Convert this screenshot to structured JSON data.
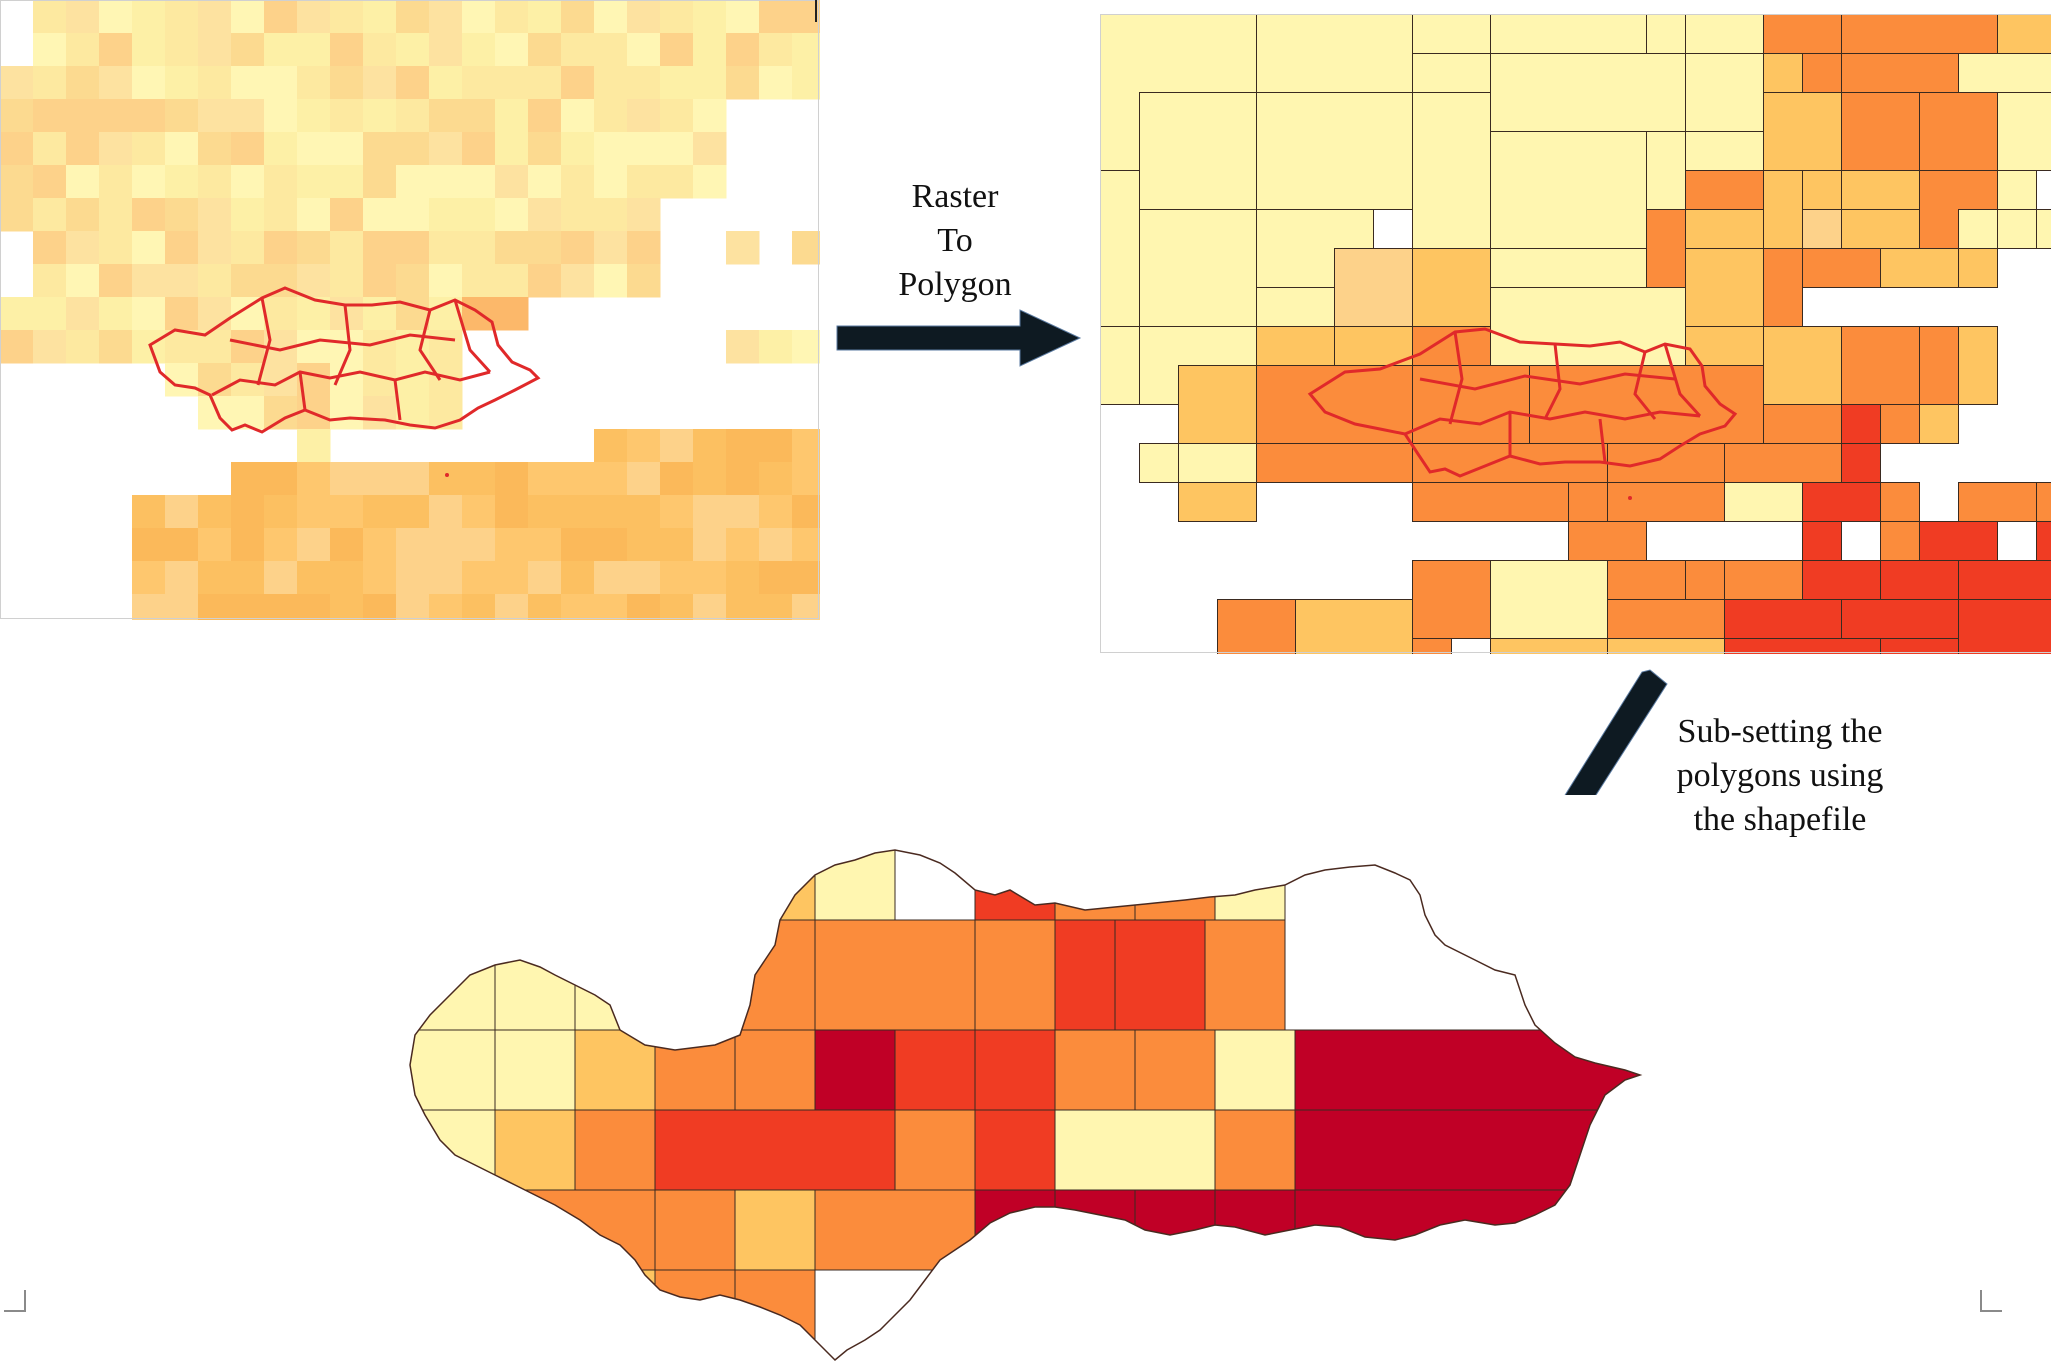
{
  "steps": [
    {
      "label": "Raster\nTo\nPolygon"
    },
    {
      "label": "Sub-setting the\npolygons using\nthe shapefile"
    }
  ],
  "colors": {
    "c1": "#fff6b0",
    "c2": "#fce7a0",
    "c3": "#fdd28a",
    "c4": "#fec561",
    "c5": "#fb8c3c",
    "c6": "#f03c23",
    "c7": "#c00026",
    "outline_red": "#e0292a",
    "arrow": "#0e1a22"
  }
}
